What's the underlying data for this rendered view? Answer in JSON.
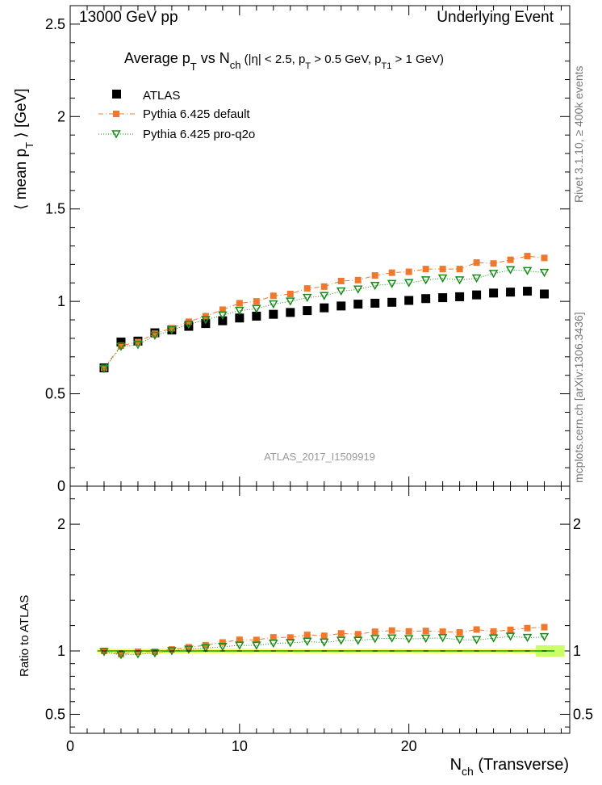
{
  "header": {
    "left": "13000 GeV pp",
    "right": "Underlying Event"
  },
  "side_labels": {
    "rivet": "Rivet 3.1.10, ≥ 400k events",
    "mcplots": "mcplots.cern.ch [arXiv:1306.3436]"
  },
  "chart_data": {
    "type": "scatter",
    "title": {
      "t1": "Average p",
      "t1sub": "T",
      "t2": " vs N",
      "t2sub": "ch",
      "t3": " (|η| < 2.5, p",
      "t3sub": "T",
      "t4": " > 0.5 GeV, p",
      "t4sub": "T1",
      "t5": " > 1 GeV)"
    },
    "analysis_id": "ATLAS_2017_I1509919",
    "ylabel": {
      "a": "⟨ mean p",
      "sub": "T",
      "b": " ⟩ [GeV]"
    },
    "ratio_ylabel": "Ratio to ATLAS",
    "xlabel": {
      "a": "N",
      "sub": "ch",
      "b": " (Transverse)"
    },
    "xlim": [
      0,
      29.5
    ],
    "ylim": [
      0,
      2.6
    ],
    "ratio_ylim": [
      0.35,
      2.3
    ],
    "x_ticks": [
      0,
      10,
      20
    ],
    "y_ticks": [
      0.5,
      1,
      1.5,
      2,
      2.5
    ],
    "y_zero_label": "0",
    "ratio_y_ticks": [
      0.5,
      1,
      2
    ],
    "x": [
      2,
      3,
      4,
      5,
      6,
      7,
      8,
      9,
      10,
      11,
      12,
      13,
      14,
      15,
      16,
      17,
      18,
      19,
      20,
      21,
      22,
      23,
      24,
      25,
      26,
      27,
      28
    ],
    "series": [
      {
        "name": "ATLAS",
        "color": "#000000",
        "marker": "square",
        "values": [
          0.64,
          0.78,
          0.785,
          0.83,
          0.845,
          0.865,
          0.88,
          0.895,
          0.91,
          0.92,
          0.93,
          0.94,
          0.95,
          0.965,
          0.975,
          0.985,
          0.99,
          0.995,
          1.005,
          1.015,
          1.02,
          1.025,
          1.035,
          1.045,
          1.05,
          1.055,
          1.04
        ]
      },
      {
        "name": "Pythia 6.425 default",
        "color": "#f0782c",
        "marker": "small-square",
        "line": "dashdot",
        "values": [
          0.64,
          0.76,
          0.78,
          0.825,
          0.855,
          0.89,
          0.92,
          0.955,
          0.99,
          1.0,
          1.03,
          1.04,
          1.07,
          1.08,
          1.11,
          1.115,
          1.14,
          1.155,
          1.16,
          1.175,
          1.175,
          1.175,
          1.21,
          1.205,
          1.225,
          1.245,
          1.235
        ]
      },
      {
        "name": "Pythia 6.425 pro-q2o",
        "color": "#1a8a1a",
        "marker": "triangle-down",
        "line": "dotted",
        "values": [
          0.635,
          0.755,
          0.765,
          0.815,
          0.845,
          0.875,
          0.9,
          0.925,
          0.95,
          0.96,
          0.985,
          1.0,
          1.02,
          1.03,
          1.055,
          1.065,
          1.085,
          1.095,
          1.1,
          1.115,
          1.125,
          1.115,
          1.125,
          1.15,
          1.17,
          1.165,
          1.155
        ]
      }
    ],
    "ratio_band": {
      "color": "#ffff66",
      "value": 1.0
    }
  }
}
